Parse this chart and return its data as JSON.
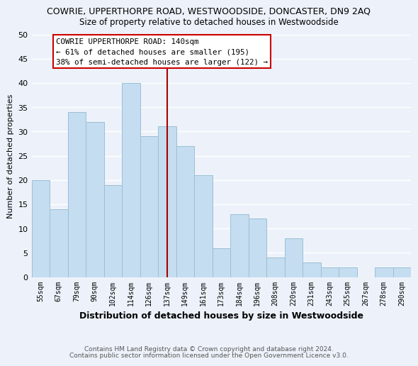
{
  "title": "COWRIE, UPPERTHORPE ROAD, WESTWOODSIDE, DONCASTER, DN9 2AQ",
  "subtitle": "Size of property relative to detached houses in Westwoodside",
  "xlabel": "Distribution of detached houses by size in Westwoodside",
  "ylabel": "Number of detached properties",
  "bar_color": "#c5ddf0",
  "bar_edge_color": "#9bbfd6",
  "categories": [
    "55sqm",
    "67sqm",
    "79sqm",
    "90sqm",
    "102sqm",
    "114sqm",
    "126sqm",
    "137sqm",
    "149sqm",
    "161sqm",
    "173sqm",
    "184sqm",
    "196sqm",
    "208sqm",
    "220sqm",
    "231sqm",
    "243sqm",
    "255sqm",
    "267sqm",
    "278sqm",
    "290sqm"
  ],
  "values": [
    20,
    14,
    34,
    32,
    19,
    40,
    29,
    31,
    27,
    21,
    6,
    13,
    12,
    4,
    8,
    3,
    2,
    2,
    0,
    2,
    2
  ],
  "ylim": [
    0,
    50
  ],
  "yticks": [
    0,
    5,
    10,
    15,
    20,
    25,
    30,
    35,
    40,
    45,
    50
  ],
  "vline_x_index": 7,
  "vline_color": "#aa0000",
  "annotation_text": "COWRIE UPPERTHORPE ROAD: 140sqm\n← 61% of detached houses are smaller (195)\n38% of semi-detached houses are larger (122) →",
  "annotation_box_color": "#ffffff",
  "annotation_box_edge": "#cc0000",
  "footer_line1": "Contains HM Land Registry data © Crown copyright and database right 2024.",
  "footer_line2": "Contains public sector information licensed under the Open Government Licence v3.0.",
  "background_color": "#edf2fa",
  "grid_color": "#ffffff"
}
